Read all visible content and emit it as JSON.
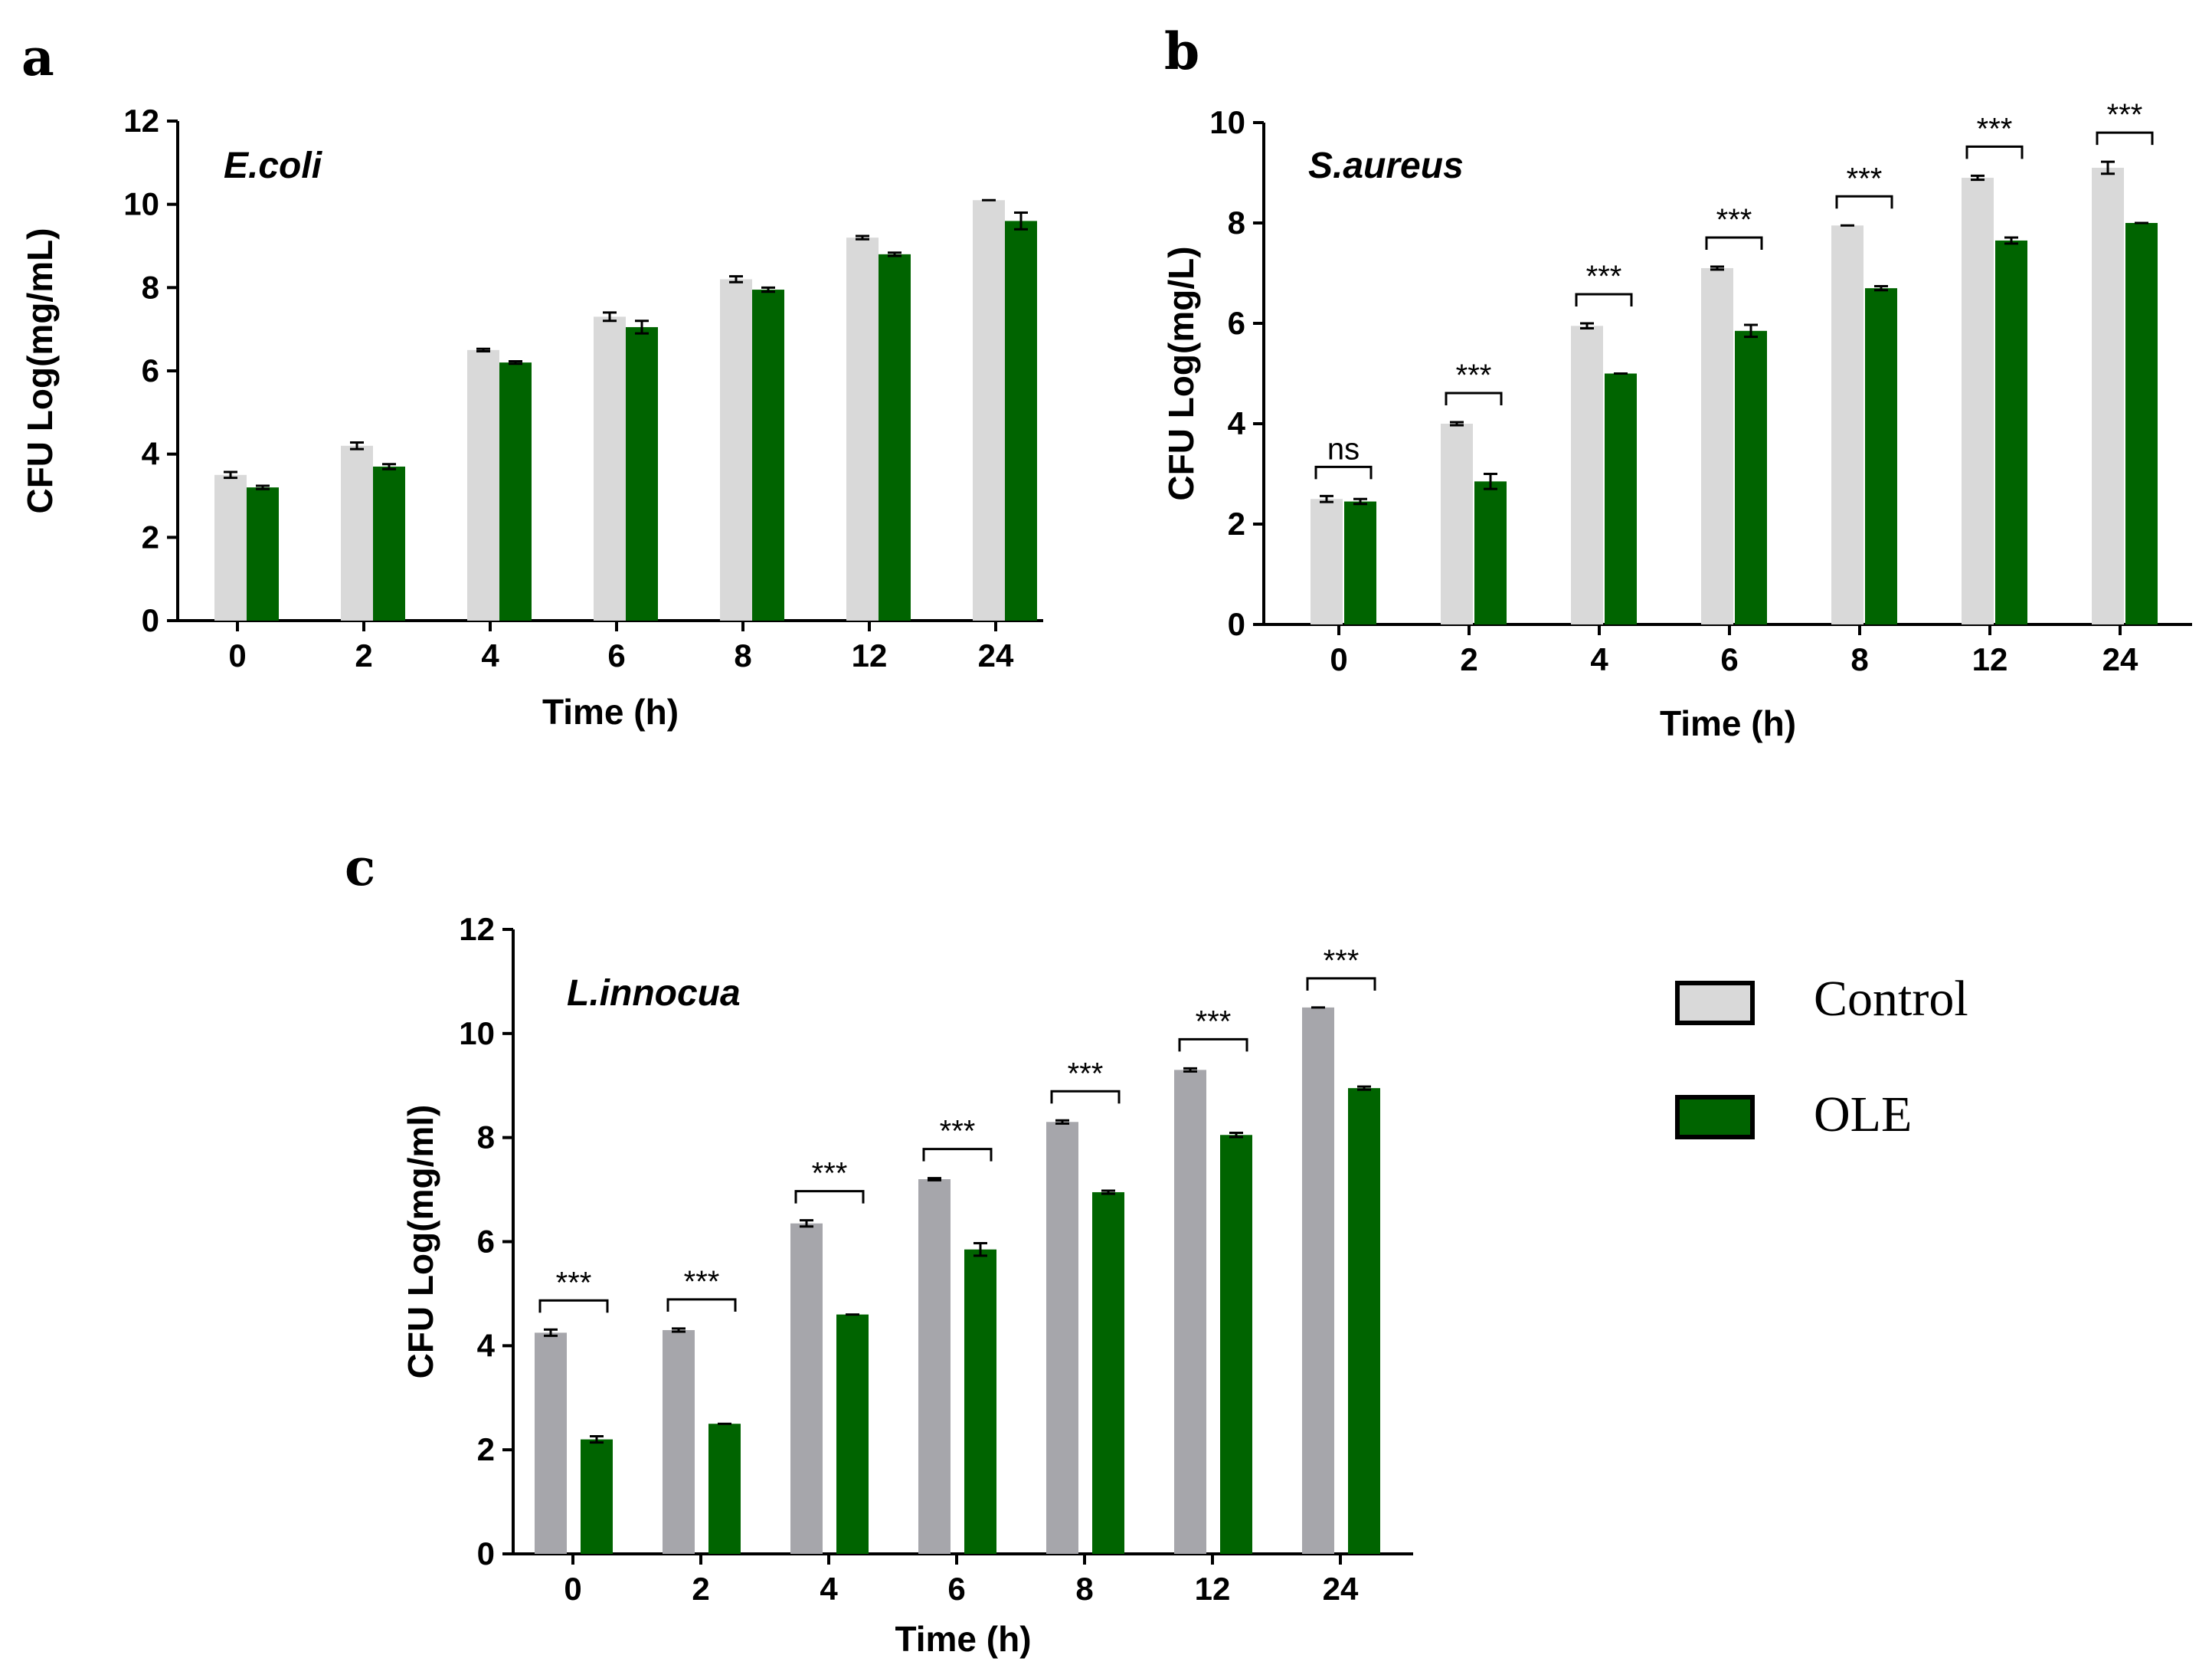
{
  "colors": {
    "control_light": "#d9d9d9",
    "control_gray": "#a6a6ab",
    "ole": "#006400",
    "axis": "#000000"
  },
  "legend": {
    "items": [
      {
        "label": "Control",
        "color": "#d9d9d9"
      },
      {
        "label": "OLE",
        "color": "#006400"
      }
    ]
  },
  "chart_data": [
    {
      "panel": "a",
      "type": "bar",
      "title": "E.coli",
      "xlabel": "Time (h)",
      "ylabel": "CFU Log(mg/mL)",
      "ylim": [
        0,
        12
      ],
      "yticks": [
        0,
        2,
        4,
        6,
        8,
        10,
        12
      ],
      "categories": [
        "0",
        "2",
        "4",
        "6",
        "8",
        "12",
        "24"
      ],
      "series": [
        {
          "name": "Control",
          "color": "#d9d9d9",
          "values": [
            3.5,
            4.2,
            6.5,
            7.3,
            8.2,
            9.2,
            10.1
          ],
          "errors": [
            0.07,
            0.08,
            0.03,
            0.1,
            0.07,
            0.04,
            0.0
          ]
        },
        {
          "name": "OLE",
          "color": "#006400",
          "values": [
            3.2,
            3.7,
            6.2,
            7.05,
            7.95,
            8.8,
            9.6
          ],
          "errors": [
            0.04,
            0.06,
            0.03,
            0.15,
            0.05,
            0.04,
            0.2
          ]
        }
      ],
      "significance": []
    },
    {
      "panel": "b",
      "type": "bar",
      "title": "S.aureus",
      "xlabel": "Time (h)",
      "ylabel": "CFU Log(mg/L)",
      "ylim": [
        0,
        10
      ],
      "yticks": [
        0,
        2,
        4,
        6,
        8,
        10
      ],
      "categories": [
        "0",
        "2",
        "4",
        "6",
        "8",
        "12",
        "24"
      ],
      "series": [
        {
          "name": "Control",
          "color": "#d9d9d9",
          "values": [
            2.5,
            4.0,
            5.95,
            7.1,
            7.95,
            8.9,
            9.1
          ],
          "errors": [
            0.06,
            0.03,
            0.05,
            0.03,
            0.0,
            0.04,
            0.12
          ]
        },
        {
          "name": "OLE",
          "color": "#006400",
          "values": [
            2.45,
            2.85,
            5.0,
            5.85,
            6.7,
            7.65,
            8.0
          ],
          "errors": [
            0.05,
            0.15,
            0.0,
            0.12,
            0.04,
            0.06,
            0.0
          ]
        }
      ],
      "significance": [
        "ns",
        "***",
        "***",
        "***",
        "***",
        "***",
        "***"
      ]
    },
    {
      "panel": "c",
      "type": "bar",
      "title": "L.innocua",
      "xlabel": "Time (h)",
      "ylabel": "CFU Log(mg/ml)",
      "ylim": [
        0,
        12
      ],
      "yticks": [
        0,
        2,
        4,
        6,
        8,
        10,
        12
      ],
      "categories": [
        "0",
        "2",
        "4",
        "6",
        "8",
        "12",
        "24"
      ],
      "series": [
        {
          "name": "Control",
          "color": "#a6a6ab",
          "values": [
            4.25,
            4.3,
            6.35,
            7.2,
            8.3,
            9.3,
            10.5
          ],
          "errors": [
            0.06,
            0.03,
            0.06,
            0.02,
            0.03,
            0.03,
            0.0
          ]
        },
        {
          "name": "OLE",
          "color": "#006400",
          "values": [
            2.2,
            2.5,
            4.6,
            5.85,
            6.95,
            8.05,
            8.95
          ],
          "errors": [
            0.06,
            0.0,
            0.0,
            0.12,
            0.03,
            0.04,
            0.03
          ]
        }
      ],
      "significance": [
        "***",
        "***",
        "***",
        "***",
        "***",
        "***",
        "***"
      ]
    }
  ]
}
